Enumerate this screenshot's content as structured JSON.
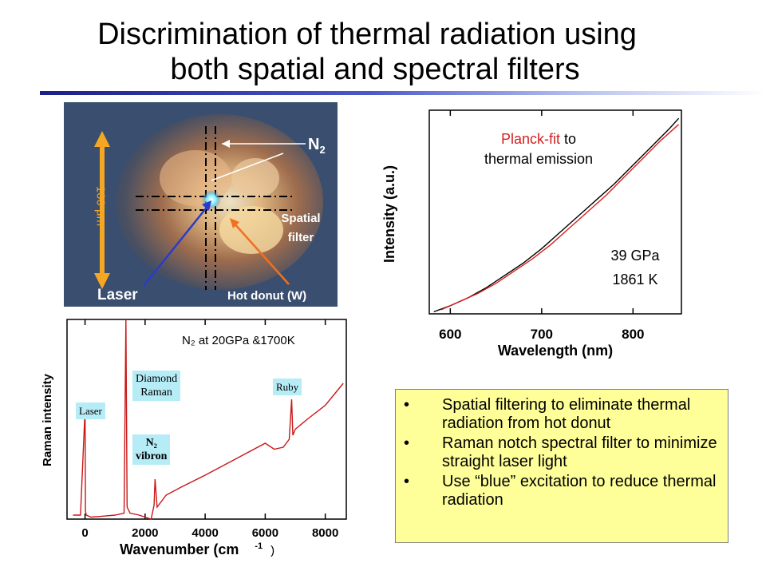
{
  "slide": {
    "title_line1": "Discrimination of thermal radiation using",
    "title_line2": "both spatial and spectral filters"
  },
  "photo": {
    "labels": {
      "n2": "N",
      "n2_sub": "2",
      "scale": "~ 100 μm",
      "spatial_filter_1": "Spatial",
      "spatial_filter_2": "filter",
      "laser": "Laser",
      "hot_donut": "Hot donut (W)"
    },
    "colors": {
      "background": "#3d5070",
      "glow": "#f2c080",
      "arrow_scale": "#f5a623",
      "arrow_laser": "#2b3bc9",
      "arrow_donut": "#f07020"
    }
  },
  "planck_chart": {
    "annotation_red": "Planck-fit",
    "annotation_black_1": " to",
    "annotation_black_2": "thermal emission",
    "condition_1": "39 GPa",
    "condition_2": "1861 K"
  },
  "raman_chart": {
    "condition": "N₂ at  20GPa &1700K",
    "tags": {
      "laser": "Laser",
      "diamond_1": "Diamond",
      "diamond_2": "Raman",
      "n2_1": "N₂",
      "n2_2": "vibron",
      "ruby": "Ruby"
    },
    "xlabel_main": "Wavenumber (cm",
    "xlabel_sup": "-1",
    "xlabel_end": ")"
  },
  "bullets": [
    {
      "dot": "•",
      "text": "Spatial filtering to eliminate thermal radiation from hot donut"
    },
    {
      "dot": "•",
      "text": "Raman notch spectral filter to minimize straight laser light"
    },
    {
      "dot": "•",
      "text": "Use “blue” excitation to reduce thermal radiation"
    }
  ],
  "chart_data": [
    {
      "type": "line",
      "title": "",
      "xlabel": "Wavelength (nm)",
      "ylabel": "Intensity (a.u.)",
      "xlim": [
        577,
        853
      ],
      "ylim": [
        0,
        1
      ],
      "xticks": [
        600,
        700,
        800
      ],
      "yticks": [],
      "series": [
        {
          "x": [
            582,
            600,
            620,
            640,
            660,
            680,
            700,
            720,
            740,
            760,
            780,
            800,
            820,
            840,
            850
          ],
          "y": [
            0.01,
            0.04,
            0.08,
            0.13,
            0.19,
            0.25,
            0.32,
            0.4,
            0.48,
            0.56,
            0.64,
            0.73,
            0.82,
            0.91,
            0.96
          ],
          "color": "#000000"
        },
        {
          "x": [
            590,
            610,
            630,
            650,
            670,
            690,
            710,
            730,
            750,
            770,
            790,
            810,
            830,
            850
          ],
          "y": [
            0.02,
            0.06,
            0.1,
            0.15,
            0.21,
            0.27,
            0.34,
            0.42,
            0.5,
            0.58,
            0.67,
            0.76,
            0.85,
            0.93
          ],
          "color": "#d42020"
        }
      ]
    },
    {
      "type": "line",
      "title": "",
      "xlabel": "Wavenumber (cm-1)",
      "ylabel": "Raman intensity",
      "xlim": [
        -600,
        8700
      ],
      "ylim": [
        0,
        1
      ],
      "xticks": [
        0,
        2000,
        4000,
        6000,
        8000
      ],
      "yticks": [],
      "series": [
        {
          "x": [
            -400,
            -150,
            0,
            15,
            40,
            200,
            600,
            1000,
            1300,
            1360,
            1400,
            1500,
            1800,
            2200,
            2300,
            2330,
            2400,
            2700,
            3200,
            4000,
            5000,
            6000,
            6300,
            6600,
            6800,
            6880,
            6920,
            7000,
            7400,
            8000,
            8600
          ],
          "y": [
            0.02,
            0.02,
            0.55,
            0.04,
            0.02,
            0.01,
            0.015,
            0.02,
            0.03,
            1.0,
            0.06,
            0.03,
            0.02,
            0.0,
            0.07,
            0.2,
            0.06,
            0.12,
            0.16,
            0.22,
            0.3,
            0.38,
            0.35,
            0.36,
            0.4,
            0.6,
            0.42,
            0.45,
            0.5,
            0.57,
            0.68
          ],
          "color": "#c81818"
        }
      ]
    }
  ]
}
